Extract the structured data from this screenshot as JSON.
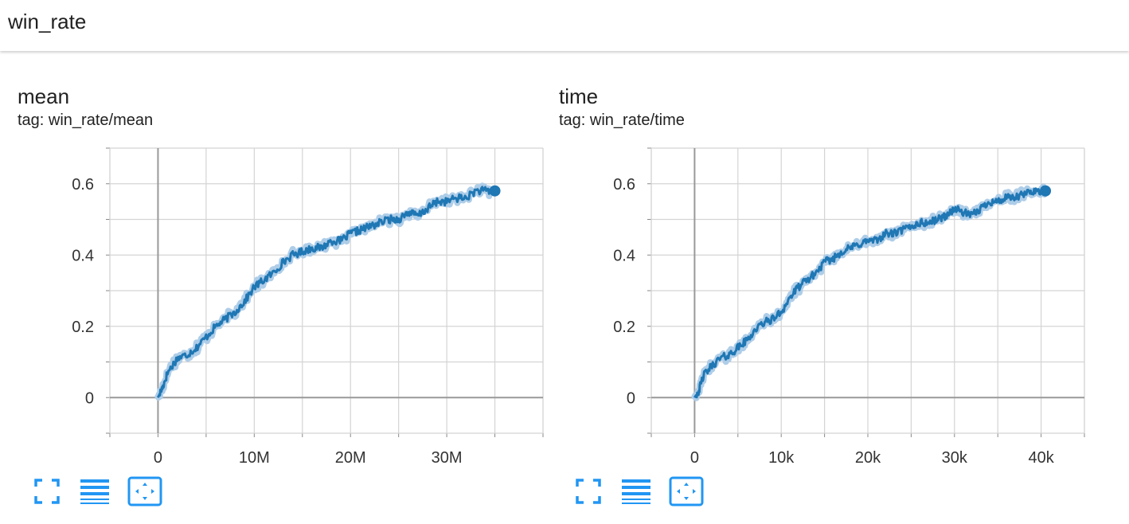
{
  "group": {
    "title": "win_rate"
  },
  "cards": [
    {
      "title": "mean",
      "tag": "tag: win_rate/mean"
    },
    {
      "title": "time",
      "tag": "tag: win_rate/time"
    }
  ],
  "icons": {
    "fullscreen": "fullscreen-icon",
    "log_scale": "list-lines-icon",
    "fit_domain": "fit-to-data-icon"
  },
  "colors": {
    "series_line": "#1f77b4",
    "series_band": "#aecde8",
    "grid": "#d4d4d4",
    "axis_zero": "#999999",
    "icon_blue": "#2196f3"
  },
  "chart_data": [
    {
      "type": "line",
      "title": "mean",
      "xlabel": "",
      "ylabel": "",
      "xlim": [
        -5000000,
        40000000
      ],
      "ylim": [
        -0.1,
        0.7
      ],
      "x_ticks": [
        0,
        10000000,
        20000000,
        30000000
      ],
      "x_tick_labels": [
        "0",
        "10M",
        "20M",
        "30M"
      ],
      "y_ticks": [
        0,
        0.2,
        0.4,
        0.6
      ],
      "y_tick_labels": [
        "0",
        "0.2",
        "0.4",
        "0.6"
      ],
      "grid": true,
      "series": [
        {
          "x": [
            0,
            500000,
            1000000,
            2000000,
            3000000,
            4000000,
            5000000,
            6000000,
            7000000,
            8000000,
            9000000,
            10000000,
            11000000,
            12000000,
            13000000,
            14000000,
            15000000,
            16000000,
            17000000,
            18000000,
            19000000,
            20000000,
            21000000,
            22000000,
            23000000,
            24000000,
            25000000,
            26000000,
            27000000,
            28000000,
            29000000,
            30000000,
            31000000,
            32000000,
            33000000,
            34000000,
            35000000
          ],
          "y": [
            0.0,
            0.03,
            0.07,
            0.11,
            0.12,
            0.14,
            0.17,
            0.2,
            0.22,
            0.24,
            0.27,
            0.31,
            0.33,
            0.35,
            0.38,
            0.4,
            0.41,
            0.42,
            0.42,
            0.44,
            0.44,
            0.46,
            0.47,
            0.48,
            0.49,
            0.5,
            0.5,
            0.52,
            0.51,
            0.53,
            0.55,
            0.55,
            0.56,
            0.56,
            0.58,
            0.58,
            0.58
          ]
        }
      ]
    },
    {
      "type": "line",
      "title": "time",
      "xlabel": "",
      "ylabel": "",
      "xlim": [
        -5000,
        45000
      ],
      "ylim": [
        -0.1,
        0.7
      ],
      "x_ticks": [
        0,
        10000,
        20000,
        30000,
        40000
      ],
      "x_tick_labels": [
        "0",
        "10k",
        "20k",
        "30k",
        "40k"
      ],
      "y_ticks": [
        0,
        0.2,
        0.4,
        0.6
      ],
      "y_tick_labels": [
        "0",
        "0.2",
        "0.4",
        "0.6"
      ],
      "grid": true,
      "series": [
        {
          "x": [
            0,
            500,
            1000,
            2000,
            3000,
            4000,
            5000,
            6000,
            7000,
            8000,
            9000,
            10000,
            11000,
            12000,
            13000,
            14000,
            15000,
            16000,
            17000,
            18000,
            19000,
            20000,
            21000,
            22000,
            23000,
            24000,
            25000,
            26000,
            27000,
            28000,
            29000,
            30000,
            31000,
            32000,
            33000,
            34000,
            35000,
            36000,
            37000,
            38000,
            39000,
            40000,
            40500
          ],
          "y": [
            0.0,
            0.02,
            0.06,
            0.09,
            0.11,
            0.12,
            0.14,
            0.16,
            0.19,
            0.21,
            0.22,
            0.24,
            0.28,
            0.31,
            0.33,
            0.35,
            0.38,
            0.39,
            0.41,
            0.42,
            0.43,
            0.44,
            0.44,
            0.46,
            0.46,
            0.47,
            0.48,
            0.49,
            0.49,
            0.5,
            0.51,
            0.53,
            0.52,
            0.51,
            0.53,
            0.55,
            0.55,
            0.56,
            0.56,
            0.57,
            0.58,
            0.58,
            0.58
          ]
        }
      ]
    }
  ]
}
